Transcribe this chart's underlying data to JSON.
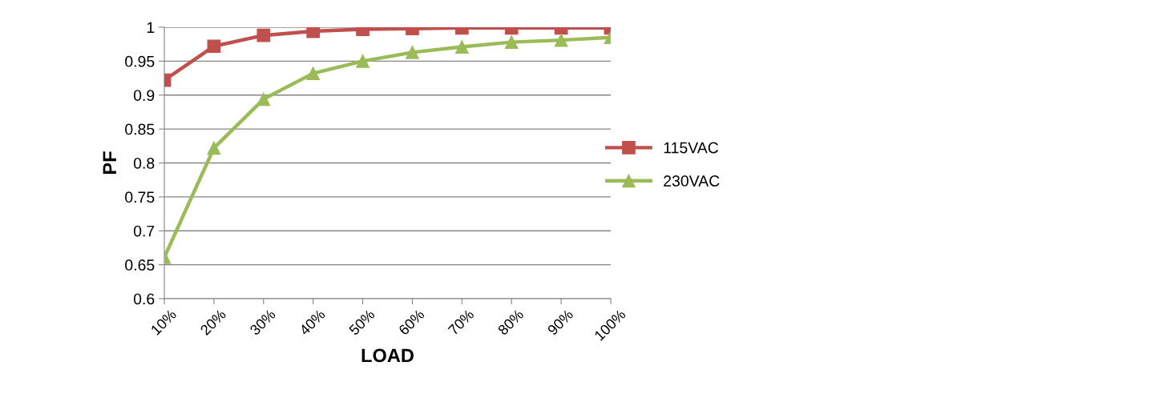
{
  "chart_data": {
    "type": "line",
    "xlabel": "LOAD",
    "ylabel": "PF",
    "categories": [
      "10%",
      "20%",
      "30%",
      "40%",
      "50%",
      "60%",
      "70%",
      "80%",
      "90%",
      "100%"
    ],
    "series": [
      {
        "name": "115VAC",
        "color": "#c0504d",
        "marker": "square",
        "values": [
          0.922,
          0.972,
          0.988,
          0.994,
          0.997,
          0.998,
          0.999,
          0.999,
          0.999,
          0.999
        ]
      },
      {
        "name": "230VAC",
        "color": "#9bbb59",
        "marker": "triangle",
        "values": [
          0.661,
          0.822,
          0.894,
          0.932,
          0.95,
          0.963,
          0.971,
          0.978,
          0.981,
          0.985
        ]
      }
    ],
    "ylim": [
      0.6,
      1
    ],
    "yticks": [
      0.6,
      0.65,
      0.7,
      0.75,
      0.8,
      0.85,
      0.9,
      0.95,
      1
    ],
    "grid": "y",
    "legend": "right"
  }
}
